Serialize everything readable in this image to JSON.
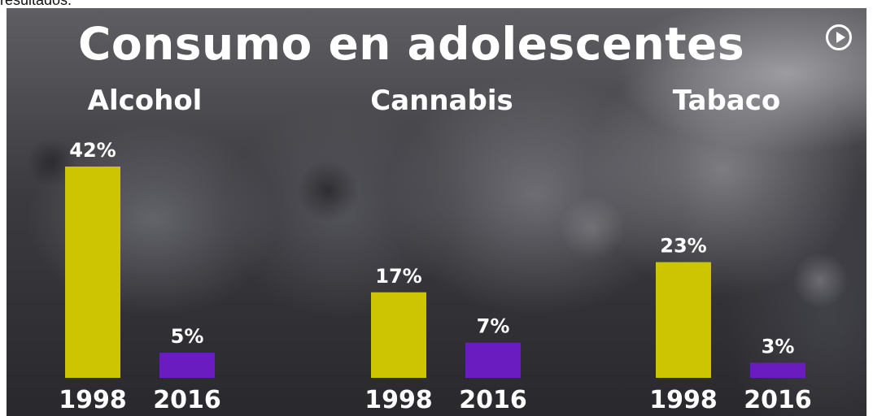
{
  "page": {
    "caption_fragment": "resultados."
  },
  "video": {
    "title": "Consumo en adolescentes",
    "play_icon": "play-circle-icon",
    "watermark": ""
  },
  "chart_data": {
    "type": "bar",
    "title": "Consumo en adolescentes",
    "categories": [
      "Alcohol",
      "Cannabis",
      "Tabaco"
    ],
    "series": [
      {
        "name": "1998",
        "values": [
          42,
          17,
          23
        ],
        "color": "#cdc402"
      },
      {
        "name": "2016",
        "values": [
          5,
          7,
          3
        ],
        "color": "#6a1cc0"
      }
    ],
    "value_labels": [
      [
        "42%",
        "5%"
      ],
      [
        "17%",
        "7%"
      ],
      [
        "23%",
        "3%"
      ]
    ],
    "year_labels": [
      "1998",
      "2016"
    ],
    "unit": "%",
    "ylim": [
      0,
      42
    ],
    "grid": false,
    "legend": "none"
  }
}
